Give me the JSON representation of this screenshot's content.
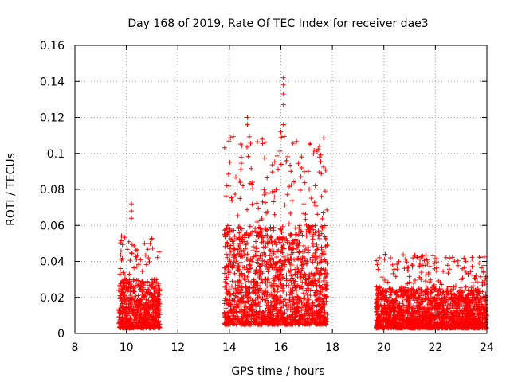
{
  "chart_data": {
    "type": "scatter",
    "title": "Day 168 of 2019, Rate Of TEC Index for receiver dae3",
    "xlabel": "GPS time / hours",
    "ylabel": "ROTI / TECUs",
    "xlim": [
      8,
      24
    ],
    "ylim": [
      0,
      0.16
    ],
    "xticks": [
      "8",
      "10",
      "12",
      "14",
      "16",
      "18",
      "20",
      "22",
      "24"
    ],
    "yticks": [
      "0",
      "0.02",
      "0.04",
      "0.06",
      "0.08",
      "0.1",
      "0.12",
      "0.14",
      "0.16"
    ],
    "grid": true,
    "marker": "plus",
    "series": [
      {
        "name": "ROTI",
        "color": "#ff0000",
        "clusters": [
          {
            "x_range": [
              9.7,
              11.3
            ],
            "typical": [
              0.003,
              0.03
            ],
            "peak": 0.055
          },
          {
            "x_range": [
              13.8,
              17.8
            ],
            "typical": [
              0.005,
              0.06
            ],
            "peak": 0.11
          },
          {
            "x_range": [
              19.7,
              24.0
            ],
            "typical": [
              0.003,
              0.025
            ],
            "peak": 0.044
          }
        ],
        "outliers": [
          {
            "x": 10.2,
            "y": 0.072
          },
          {
            "x": 10.2,
            "y": 0.068
          },
          {
            "x": 10.2,
            "y": 0.064
          },
          {
            "x": 14.7,
            "y": 0.12
          },
          {
            "x": 14.7,
            "y": 0.116
          },
          {
            "x": 16.1,
            "y": 0.142
          },
          {
            "x": 16.1,
            "y": 0.138
          },
          {
            "x": 16.1,
            "y": 0.133
          },
          {
            "x": 16.1,
            "y": 0.127
          },
          {
            "x": 16.1,
            "y": 0.116
          },
          {
            "x": 16.0,
            "y": 0.112
          },
          {
            "x": 17.5,
            "y": 0.104
          },
          {
            "x": 17.5,
            "y": 0.098
          },
          {
            "x": 16.8,
            "y": 0.098
          },
          {
            "x": 16.8,
            "y": 0.092
          }
        ]
      }
    ]
  }
}
